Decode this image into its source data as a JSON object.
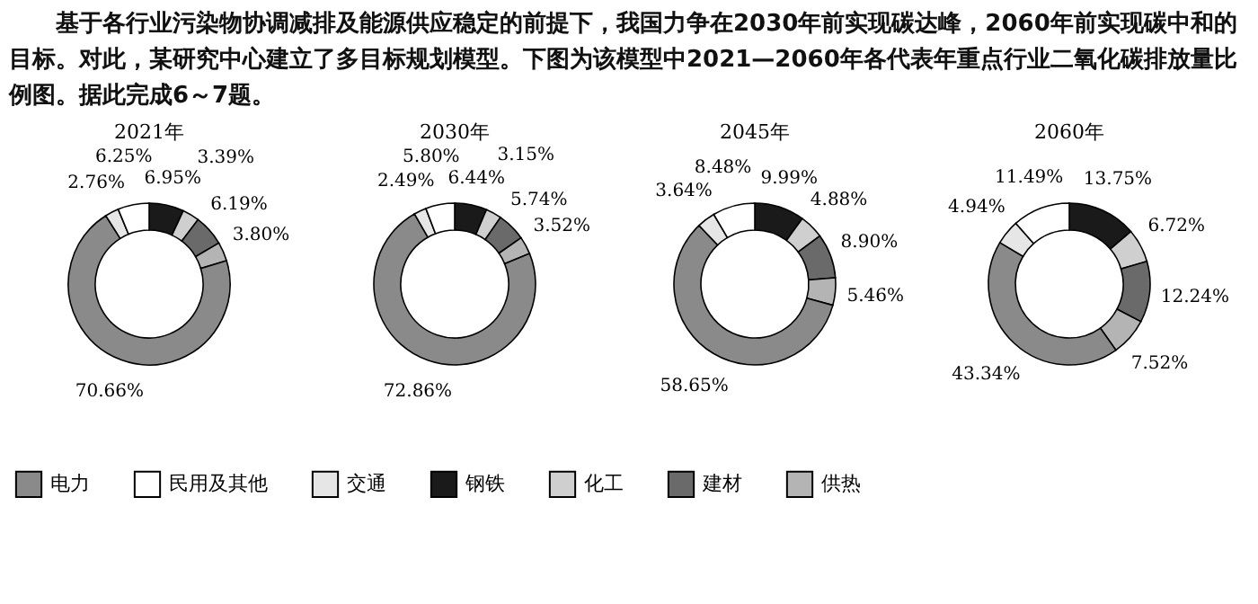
{
  "chart_data": [
    {
      "type": "donut",
      "title": "2021年",
      "annotations": [
        "基于各行业污染物协调减排及能源供应稳定的前提下，我国力争在2030年前实现碳达峰，2060年前实现碳中和的目标。对此，某研究中心建立了多目标规划模型。下图为该模型中2021—2060年各代表年重点行业二氧化碳排放量比例图。据此完成6～7题。"
      ],
      "legend": "bottom",
      "categories": [
        "电力",
        "民用及其他",
        "交通",
        "钢铁",
        "化工",
        "建材",
        "供热"
      ],
      "colors": [
        "#8a8a8a",
        "#ffffff",
        "#e6e6e6",
        "#1a1a1a",
        "#cfcfcf",
        "#6a6a6a",
        "#b4b4b4"
      ],
      "values": [
        70.66,
        6.25,
        2.76,
        6.95,
        3.39,
        6.19,
        3.8
      ],
      "value_labels": [
        "70.66%",
        "6.25%",
        "2.76%",
        "6.95%",
        "3.39%",
        "6.19%",
        "3.80%"
      ]
    },
    {
      "type": "donut",
      "title": "2030年",
      "categories": [
        null,
        null,
        null,
        null,
        null,
        null,
        null
      ],
      "colors": [
        "#8a8a8a",
        "#ffffff",
        "#e6e6e6",
        "#1a1a1a",
        "#cfcfcf",
        "#6a6a6a",
        "#b4b4b4"
      ],
      "values": [
        72.86,
        5.8,
        2.49,
        6.44,
        3.15,
        5.74,
        3.52
      ],
      "value_labels": [
        "72.86%",
        "5.80%",
        "2.49%",
        "6.44%",
        "3.15%",
        "5.74%",
        "3.52%"
      ]
    },
    {
      "type": "donut",
      "title": "2045年",
      "categories": [
        null,
        null,
        null,
        null,
        null,
        null,
        null
      ],
      "colors": [
        "#8a8a8a",
        "#ffffff",
        "#e6e6e6",
        "#1a1a1a",
        "#cfcfcf",
        "#6a6a6a",
        "#b4b4b4"
      ],
      "values": [
        58.65,
        8.48,
        3.64,
        9.99,
        4.88,
        8.9,
        5.46
      ],
      "value_labels": [
        "58.65%",
        "8.48%",
        "3.64%",
        "9.99%",
        "4.88%",
        "8.90%",
        "5.46%"
      ]
    },
    {
      "type": "donut",
      "title": "2060年",
      "categories": [
        null,
        null,
        null,
        null,
        null,
        null,
        null
      ],
      "colors": [
        "#8a8a8a",
        "#ffffff",
        "#e6e6e6",
        "#1a1a1a",
        "#cfcfcf",
        "#6a6a6a",
        "#b4b4b4"
      ],
      "values": [
        43.34,
        11.49,
        4.94,
        13.75,
        6.72,
        12.24,
        7.52
      ],
      "value_labels": [
        "43.34%",
        "11.49%",
        "4.94%",
        "13.75%",
        "6.72%",
        "12.24%",
        "7.52%"
      ]
    }
  ]
}
